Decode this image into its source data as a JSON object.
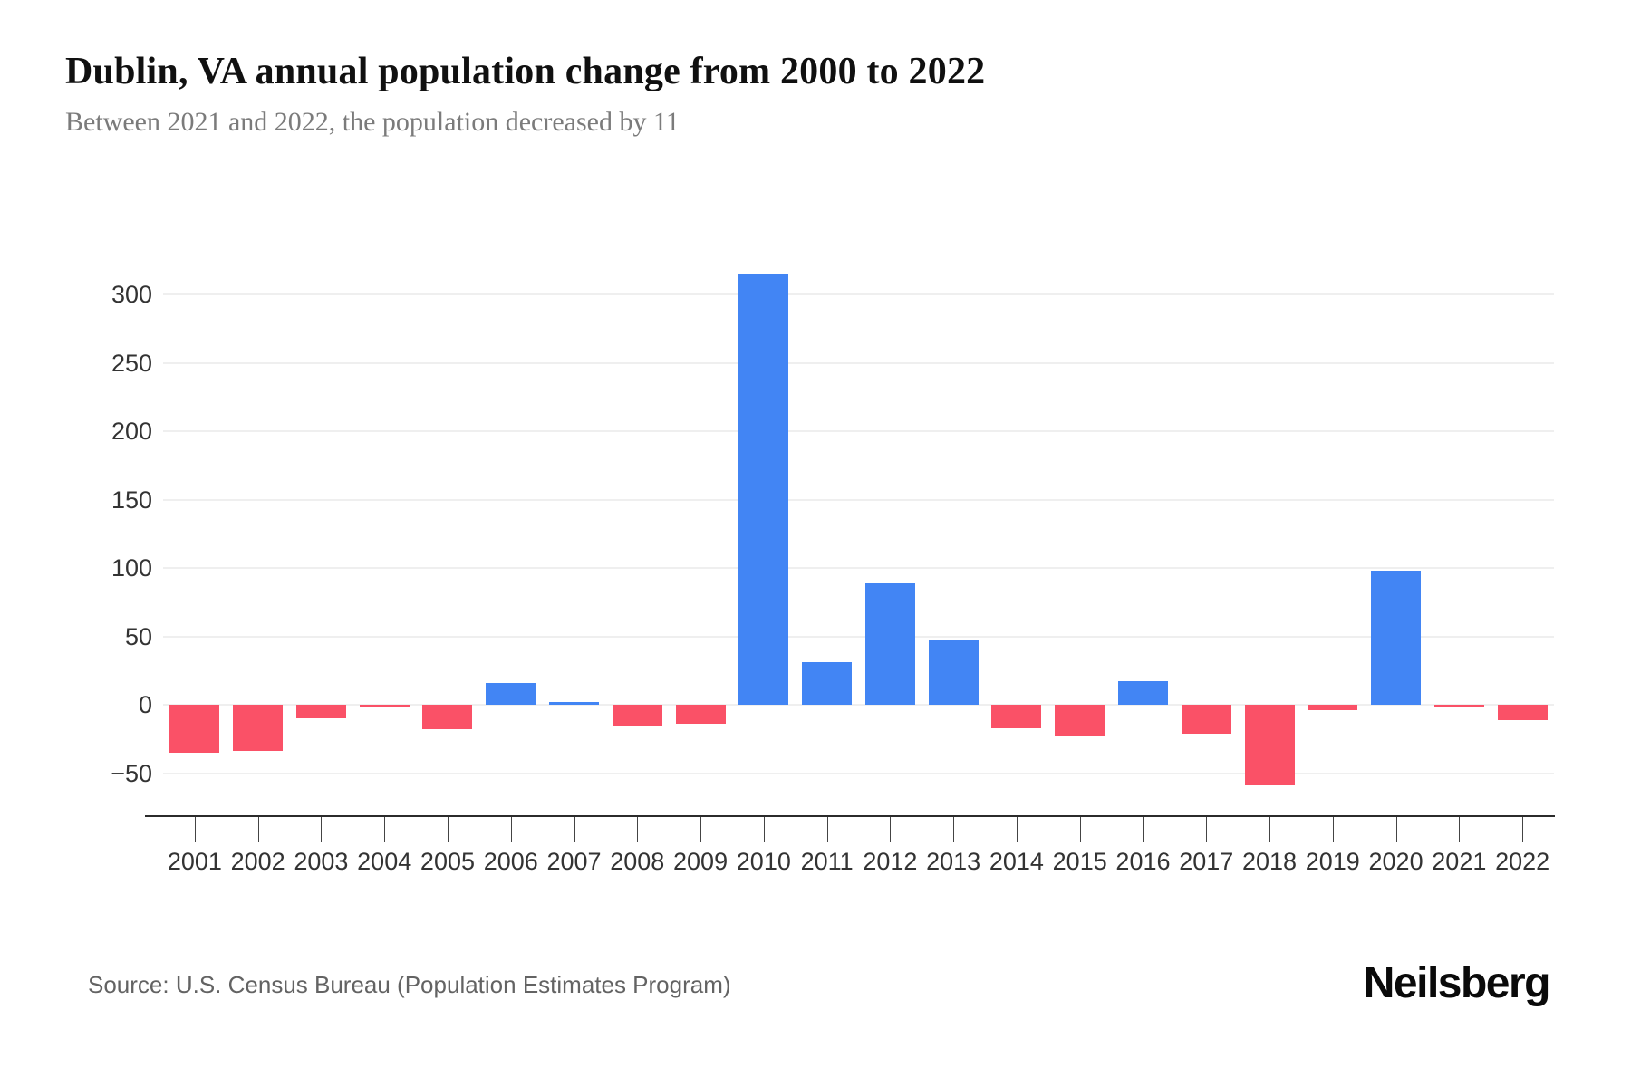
{
  "header": {
    "title": "Dublin, VA annual population change from 2000 to 2022",
    "subtitle": "Between 2021 and 2022, the population decreased by 11"
  },
  "source": {
    "label": "Source: U.S. Census Bureau (Population Estimates Program)"
  },
  "branding": {
    "logo_text": "Neilsberg"
  },
  "colors": {
    "positive_bar": "#4285F4",
    "negative_bar": "#FA5167",
    "gridline": "#efefef",
    "axis_line": "#2b2b2b",
    "tick_label": "#333333",
    "title_text": "#101010",
    "subtitle_text": "#7b7b7b",
    "source_text": "#636363"
  },
  "chart_data": {
    "type": "bar",
    "title": "Dublin, VA annual population change from 2000 to 2022",
    "xlabel": "",
    "ylabel": "",
    "categories": [
      "2001",
      "2002",
      "2003",
      "2004",
      "2005",
      "2006",
      "2007",
      "2008",
      "2009",
      "2010",
      "2011",
      "2012",
      "2013",
      "2014",
      "2015",
      "2016",
      "2017",
      "2018",
      "2019",
      "2020",
      "2021",
      "2022"
    ],
    "values": [
      -35,
      -34,
      -10,
      -2,
      -18,
      16,
      2,
      -15,
      -14,
      315,
      31,
      89,
      47,
      -17,
      -23,
      17,
      -21,
      -59,
      -4,
      98,
      -2,
      -11
    ],
    "yticks": [
      300,
      250,
      200,
      150,
      100,
      50,
      0,
      -50
    ],
    "ylim": [
      -80,
      350
    ],
    "grid": true,
    "legend": false,
    "positive_color": "#4285F4",
    "negative_color": "#FA5167"
  }
}
